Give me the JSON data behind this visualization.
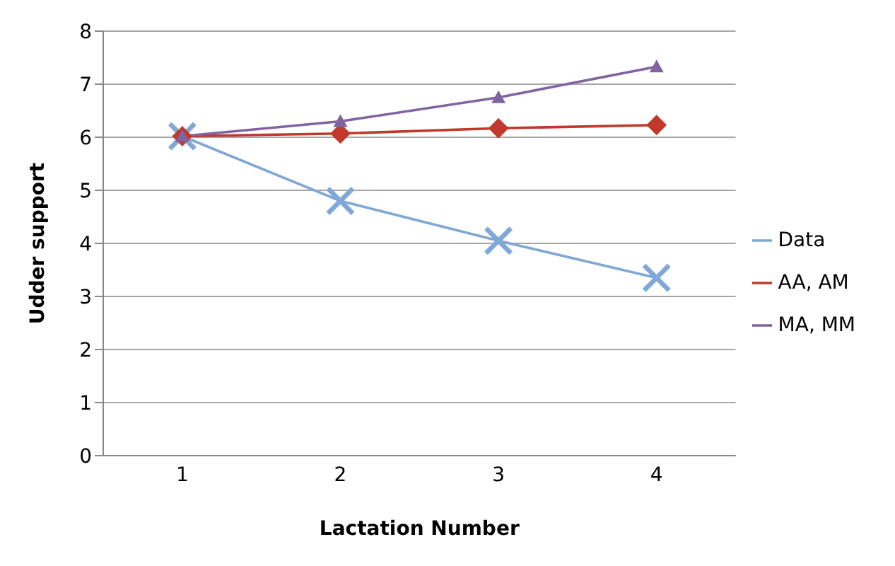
{
  "chart_data": {
    "type": "line",
    "xlabel": "Lactation Number",
    "ylabel": "Udder support",
    "categories": [
      "1",
      "2",
      "3",
      "4"
    ],
    "series": [
      {
        "name": "Data",
        "color": "#7fa8d6",
        "marker": "cross",
        "values": [
          6.02,
          4.8,
          4.05,
          3.35
        ]
      },
      {
        "name": "AA, AM",
        "color": "#c0392b",
        "marker": "diamond",
        "values": [
          6.02,
          6.07,
          6.17,
          6.23
        ]
      },
      {
        "name": "MA, MM",
        "color": "#8064a2",
        "marker": "triangle",
        "values": [
          6.02,
          6.3,
          6.75,
          7.33
        ]
      }
    ],
    "ylim": [
      0,
      8
    ],
    "yticks": [
      0,
      1,
      2,
      3,
      4,
      5,
      6,
      7,
      8
    ],
    "grid": "y",
    "legend": "right",
    "line_style": "solid"
  }
}
